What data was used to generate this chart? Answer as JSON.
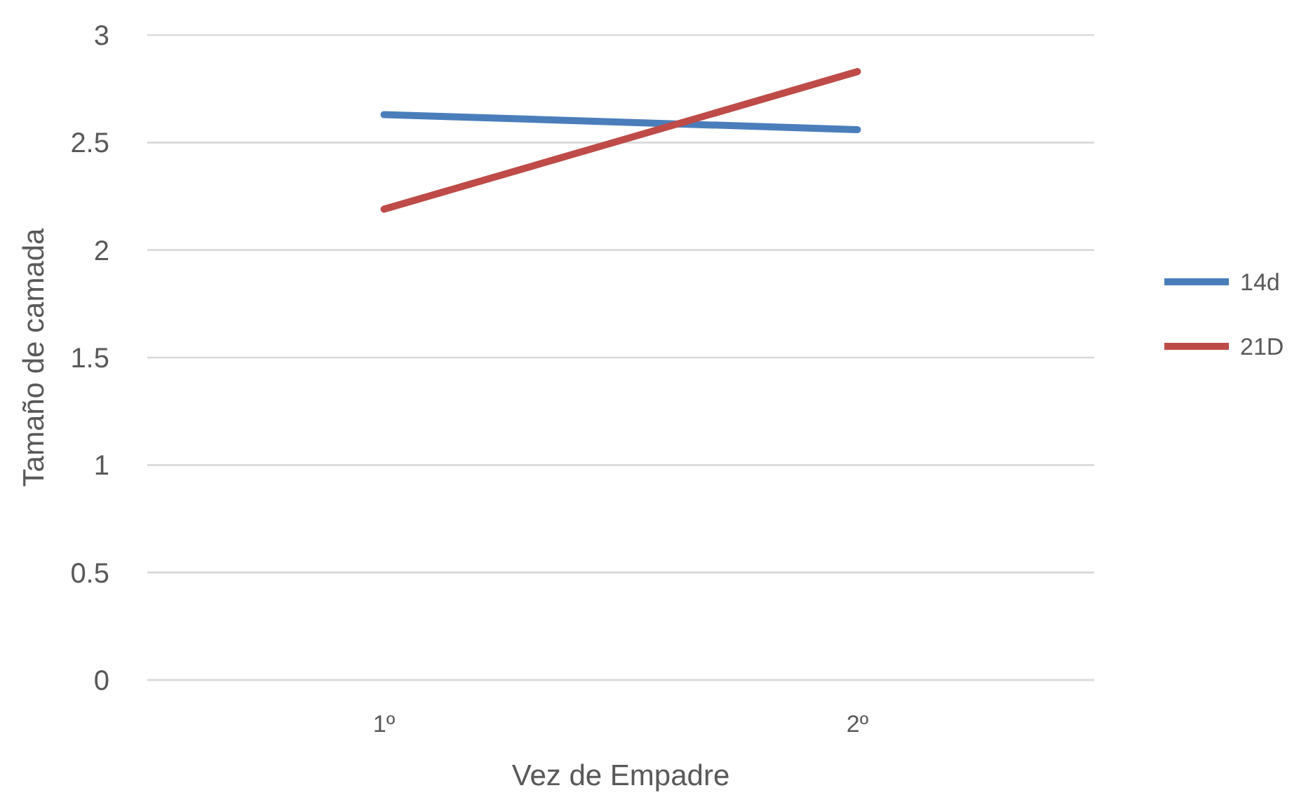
{
  "chart_data": {
    "type": "line",
    "xlabel": "Vez de Empadre",
    "ylabel": "Tamaño de camada",
    "categories": [
      "1º",
      "2º"
    ],
    "series": [
      {
        "name": "14d",
        "color": "#4a7ebb",
        "values": [
          2.63,
          2.56
        ]
      },
      {
        "name": "21D",
        "color": "#be4b48",
        "values": [
          2.19,
          2.83
        ]
      }
    ],
    "ylim": [
      0,
      3
    ],
    "yticks": [
      0,
      0.5,
      1,
      1.5,
      2,
      2.5,
      3
    ],
    "grid": "y",
    "legend": "right",
    "marker": "none",
    "line_style": "solid"
  }
}
